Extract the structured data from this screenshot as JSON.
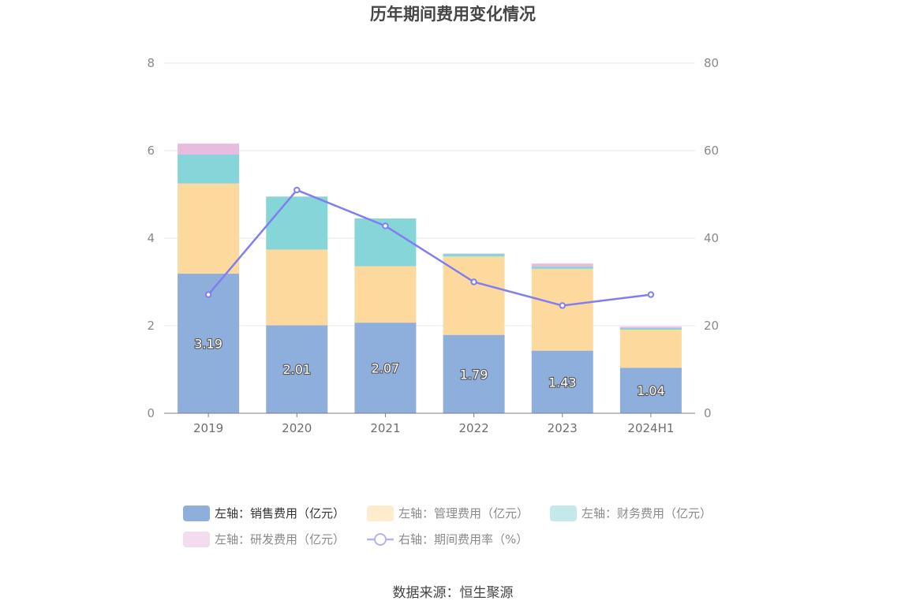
{
  "chart_data": {
    "type": "bar",
    "stacked": true,
    "title": "历年期间费用变化情况",
    "categories": [
      "2019",
      "2020",
      "2021",
      "2022",
      "2023",
      "2024H1"
    ],
    "y_left": {
      "min": 0,
      "max": 8,
      "ticks": [
        0,
        2,
        4,
        6,
        8
      ]
    },
    "y_right": {
      "min": 0,
      "max": 80,
      "ticks": [
        0,
        20,
        40,
        60,
        80
      ]
    },
    "grid": true,
    "legend_position": "bottom",
    "series": [
      {
        "name": "左轴：销售费用（亿元）",
        "axis": "left",
        "type": "bar",
        "color": "#8eaedc",
        "values": [
          3.19,
          2.01,
          2.07,
          1.79,
          1.43,
          1.04
        ],
        "labels": [
          "3.19",
          "2.01",
          "2.07",
          "1.79",
          "1.43",
          "1.04"
        ]
      },
      {
        "name": "左轴：管理费用（亿元）",
        "axis": "left",
        "type": "bar",
        "color": "#fed99e",
        "values": [
          2.06,
          1.73,
          1.29,
          1.79,
          1.87,
          0.87
        ]
      },
      {
        "name": "左轴：财务费用（亿元）",
        "axis": "left",
        "type": "bar",
        "color": "#86d5d9",
        "values": [
          0.66,
          1.21,
          1.09,
          0.06,
          0.05,
          0.04
        ]
      },
      {
        "name": "左轴：研发费用（亿元）",
        "axis": "left",
        "type": "bar",
        "color": "#e8bcdf",
        "values": [
          0.25,
          0.0,
          0.0,
          0.01,
          0.07,
          0.03
        ]
      },
      {
        "name": "右轴：期间费用率（%）",
        "axis": "right",
        "type": "line",
        "color": "#7f7ff0",
        "values": [
          27.1,
          51.0,
          42.8,
          30.0,
          24.6,
          27.1
        ]
      }
    ]
  },
  "legend": {
    "colors": [
      "#8eaedc",
      "#feeccd",
      "#c3e9eb",
      "#f3dcee",
      "#b3b3f3"
    ],
    "text_dark_index": 0
  },
  "source": "数据来源：恒生聚源"
}
